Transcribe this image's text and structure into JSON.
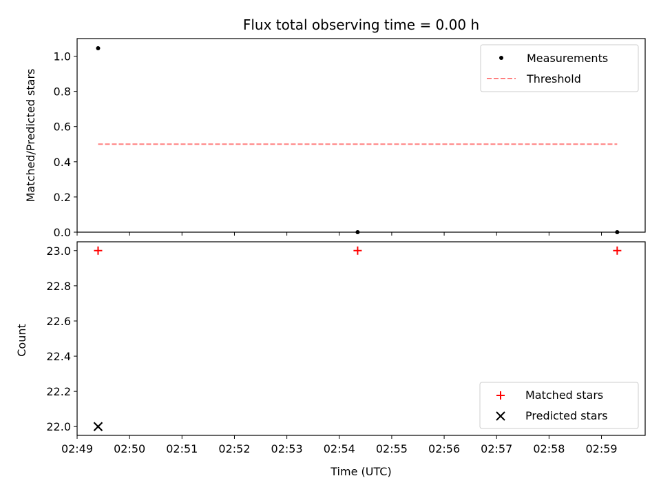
{
  "chart_data": [
    {
      "type": "scatter",
      "title": "Flux total observing time = 0.00 h",
      "xlabel": "",
      "ylabel": "Matched/Predicted stars",
      "xlim": [
        "02:49:00",
        "02:59:50"
      ],
      "ylim": [
        0,
        1.1
      ],
      "yticks": [
        0.0,
        0.2,
        0.4,
        0.6,
        0.8,
        1.0
      ],
      "ytick_labels": [
        "0.0",
        "0.2",
        "0.4",
        "0.6",
        "0.8",
        "1.0"
      ],
      "series": [
        {
          "name": "Measurements",
          "kind": "scatter",
          "marker": "dot",
          "color": "#000000",
          "points": [
            {
              "x": "02:49:24",
              "y": 1.045
            },
            {
              "x": "02:54:21",
              "y": 0.0
            },
            {
              "x": "02:59:18",
              "y": 0.0
            }
          ]
        },
        {
          "name": "Threshold",
          "kind": "line",
          "dash": true,
          "color": "#ff7f7f",
          "points": [
            {
              "x": "02:49:24",
              "y": 0.5
            },
            {
              "x": "02:59:18",
              "y": 0.5
            }
          ]
        }
      ],
      "legend": "top-right",
      "grid": false
    },
    {
      "type": "scatter",
      "title": "",
      "xlabel": "Time (UTC)",
      "ylabel": "Count",
      "xlim": [
        "02:49:00",
        "02:59:50"
      ],
      "ylim": [
        21.95,
        23.05
      ],
      "yticks": [
        22.0,
        22.2,
        22.4,
        22.6,
        22.8,
        23.0
      ],
      "ytick_labels": [
        "22.0",
        "22.2",
        "22.4",
        "22.6",
        "22.8",
        "23.0"
      ],
      "xticks": [
        "02:49",
        "02:50",
        "02:51",
        "02:52",
        "02:53",
        "02:54",
        "02:55",
        "02:56",
        "02:57",
        "02:58",
        "02:59"
      ],
      "series": [
        {
          "name": "Matched stars",
          "kind": "scatter",
          "marker": "plus",
          "color": "#ff0000",
          "points": [
            {
              "x": "02:49:24",
              "y": 23.0
            },
            {
              "x": "02:54:21",
              "y": 23.0
            },
            {
              "x": "02:59:18",
              "y": 23.0
            }
          ]
        },
        {
          "name": "Predicted stars",
          "kind": "scatter",
          "marker": "x",
          "color": "#000000",
          "points": [
            {
              "x": "02:49:24",
              "y": 22.0
            }
          ]
        }
      ],
      "legend": "bottom-right",
      "grid": false
    }
  ]
}
